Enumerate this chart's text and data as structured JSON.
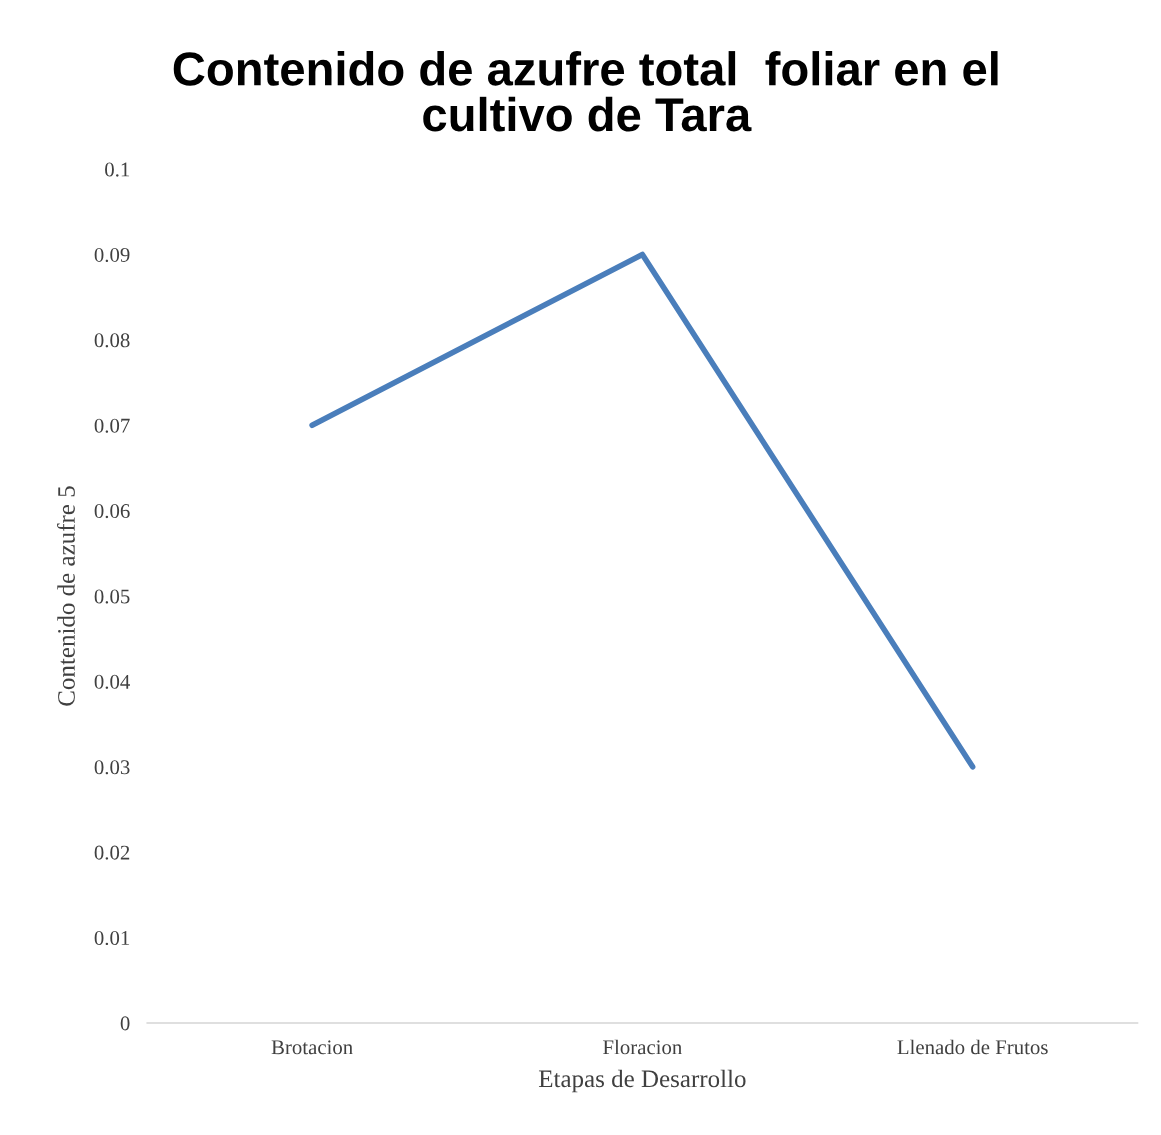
{
  "chart_data": {
    "type": "line",
    "title": "Contenido de azufre total  foliar en el\ncultivo de Tara",
    "xlabel": "Etapas de Desarrollo",
    "ylabel": "Contenido de azufre 5",
    "categories": [
      "Brotacion",
      "Floracion",
      "Llenado de Frutos"
    ],
    "series": [
      {
        "color": "#4a7ebb",
        "values": [
          0.07,
          0.09,
          0.03
        ]
      }
    ],
    "ylim": [
      0,
      0.1
    ],
    "yticks": [
      0,
      0.01,
      0.02,
      0.03,
      0.04,
      0.05,
      0.06,
      0.07,
      0.08,
      0.09,
      0.1
    ],
    "grid": false,
    "legend": false
  }
}
